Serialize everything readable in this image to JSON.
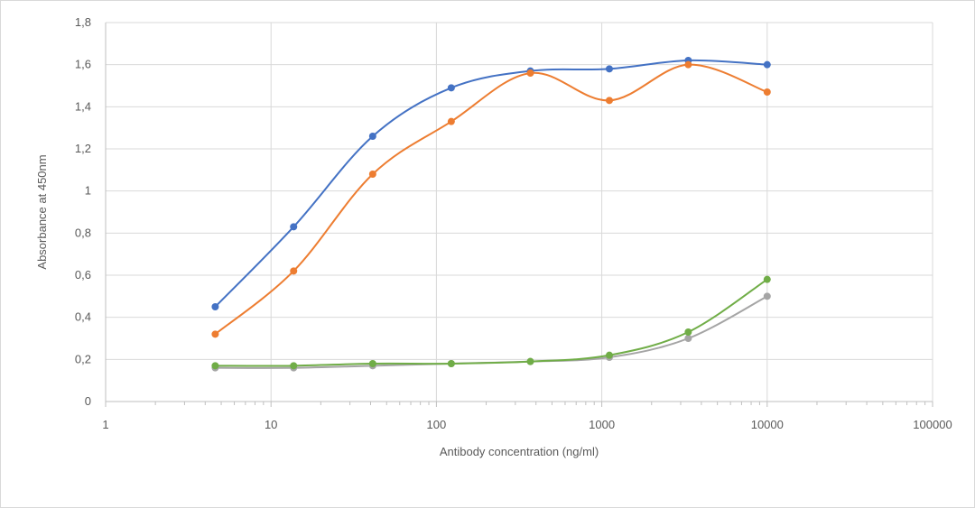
{
  "chart_data": {
    "type": "line",
    "title": "",
    "xlabel": "Antibody concentration (ng/ml)",
    "ylabel": "Absorbance at 450nm",
    "xscale": "log",
    "xlim": [
      1,
      100000
    ],
    "ylim": [
      0,
      1.8
    ],
    "x_tick_labels": [
      "1",
      "10",
      "100",
      "1000",
      "10000",
      "100000"
    ],
    "y_tick_labels": [
      "0",
      "0,2",
      "0,4",
      "0,6",
      "0,8",
      "1",
      "1,2",
      "1,4",
      "1,6",
      "1,8"
    ],
    "grid": true,
    "legend": "none",
    "x": [
      4.6,
      13.7,
      41.2,
      123,
      370,
      1111,
      3333,
      10000
    ],
    "series": [
      {
        "color": "#4472c4",
        "values": [
          0.45,
          0.83,
          1.26,
          1.49,
          1.57,
          1.58,
          1.62,
          1.6
        ]
      },
      {
        "color": "#ed7d31",
        "values": [
          0.32,
          0.62,
          1.08,
          1.33,
          1.56,
          1.43,
          1.6,
          1.47
        ]
      },
      {
        "color": "#a5a5a5",
        "values": [
          0.16,
          0.16,
          0.17,
          0.18,
          0.19,
          0.21,
          0.3,
          0.5
        ]
      },
      {
        "color": "#70ad47",
        "values": [
          0.17,
          0.17,
          0.18,
          0.18,
          0.19,
          0.22,
          0.33,
          0.58
        ]
      }
    ]
  }
}
